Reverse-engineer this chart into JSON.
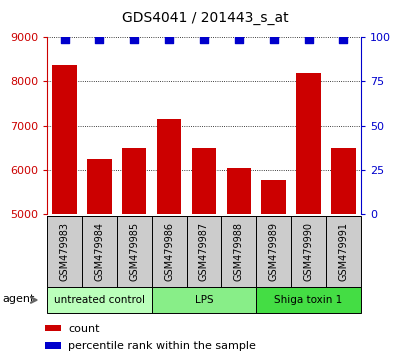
{
  "title": "GDS4041 / 201443_s_at",
  "samples": [
    "GSM479983",
    "GSM479984",
    "GSM479985",
    "GSM479986",
    "GSM479987",
    "GSM479988",
    "GSM479989",
    "GSM479990",
    "GSM479991"
  ],
  "counts": [
    8380,
    6250,
    6500,
    7150,
    6500,
    6050,
    5780,
    8200,
    6500
  ],
  "percentile_ranks": [
    99,
    99,
    99,
    99,
    99,
    99,
    99,
    99,
    99
  ],
  "ylim_left": [
    5000,
    9000
  ],
  "ylim_right": [
    0,
    100
  ],
  "yticks_left": [
    5000,
    6000,
    7000,
    8000,
    9000
  ],
  "yticks_right": [
    0,
    25,
    50,
    75,
    100
  ],
  "bar_color": "#cc0000",
  "scatter_color": "#0000cc",
  "bar_width": 0.7,
  "groups": [
    {
      "label": "untreated control",
      "start": 0,
      "end": 3,
      "color": "#bbffbb"
    },
    {
      "label": "LPS",
      "start": 3,
      "end": 6,
      "color": "#88ee88"
    },
    {
      "label": "Shiga toxin 1",
      "start": 6,
      "end": 9,
      "color": "#44dd44"
    }
  ],
  "agent_label": "agent",
  "left_axis_color": "#cc0000",
  "right_axis_color": "#0000cc",
  "background_color": "#ffffff",
  "legend_count_color": "#cc0000",
  "legend_pct_color": "#0000cc",
  "legend_count_label": "count",
  "legend_pct_label": "percentile rank within the sample",
  "label_box_color": "#cccccc",
  "tick_fontsize": 8,
  "label_fontsize": 7,
  "title_fontsize": 10
}
